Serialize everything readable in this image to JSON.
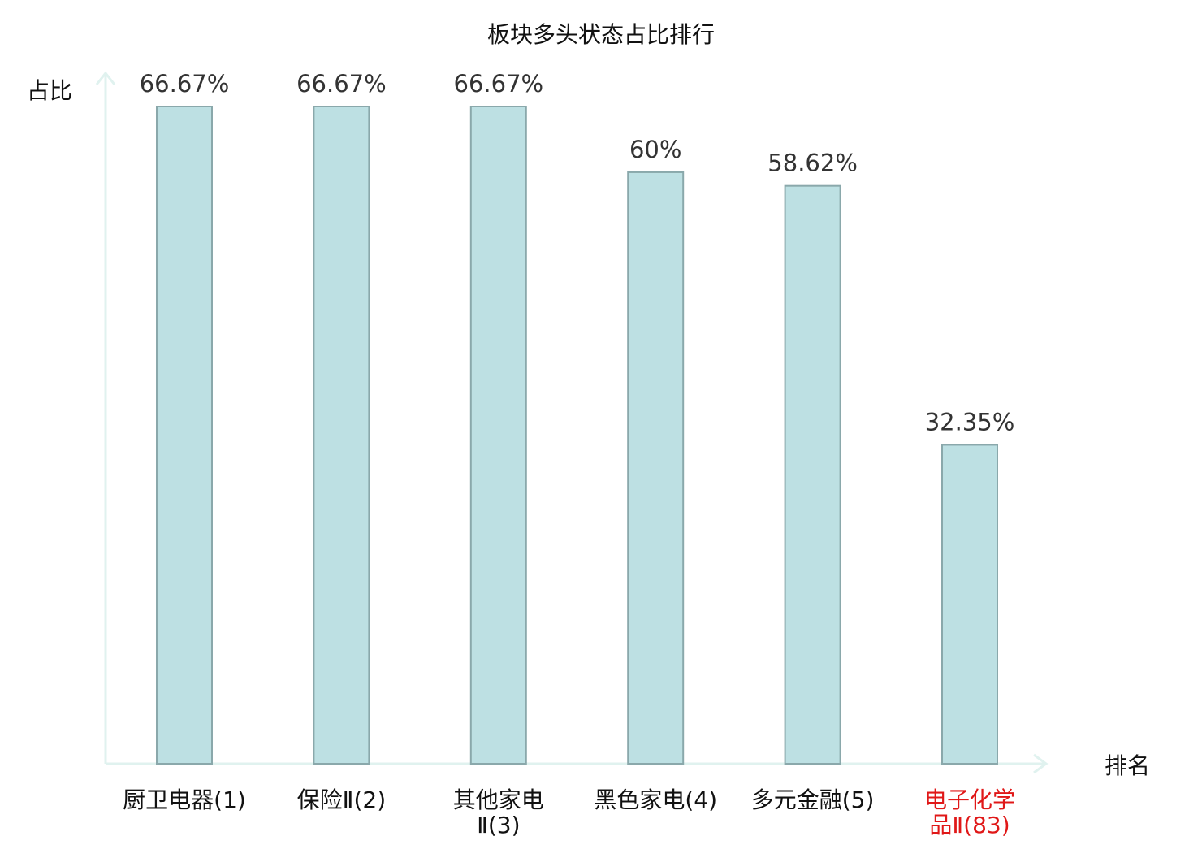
{
  "chart_data": {
    "type": "bar",
    "title": "板块多头状态占比排行",
    "ylabel": "占比",
    "xlabel": "排名",
    "ylim": [
      0,
      70
    ],
    "grid": false,
    "legend": "none",
    "categories": [
      {
        "lines": [
          "厨卫电器(1)"
        ],
        "highlight": false
      },
      {
        "lines": [
          "保险Ⅱ(2)"
        ],
        "highlight": false
      },
      {
        "lines": [
          "其他家电",
          "Ⅱ(3)"
        ],
        "highlight": false
      },
      {
        "lines": [
          "黑色家电(4)"
        ],
        "highlight": false
      },
      {
        "lines": [
          "多元金融(5)"
        ],
        "highlight": false
      },
      {
        "lines": [
          "电子化学",
          "品Ⅱ(83)"
        ],
        "highlight": true
      }
    ],
    "values": [
      66.67,
      66.67,
      66.67,
      60,
      58.62,
      32.35
    ],
    "value_labels": [
      "66.67%",
      "66.67%",
      "66.67%",
      "60%",
      "58.62%",
      "32.35%"
    ],
    "colors": {
      "bar_fill": "#bde0e3",
      "bar_stroke": "#8aa8ab",
      "axis": "#e0f2ef",
      "highlight_label": "#e01818"
    }
  }
}
